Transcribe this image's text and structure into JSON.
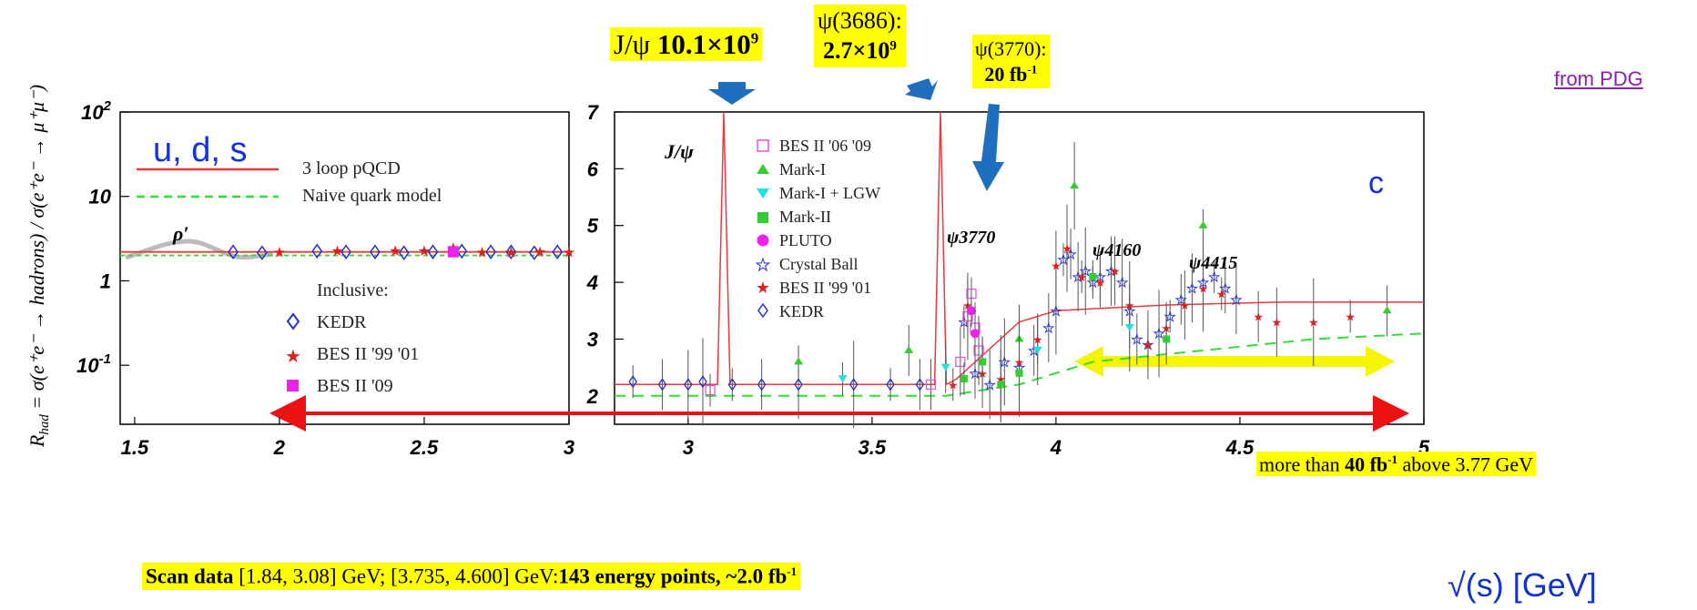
{
  "header": {
    "jpsi_name": "J/ψ",
    "jpsi_count": "10.1×10",
    "jpsi_exp": "9",
    "psi3686_name": "ψ(3686):",
    "psi3686_count": "2.7×10",
    "psi3686_exp": "9",
    "psi3770_name": "ψ(3770):",
    "psi3770_lumi": "20 fb",
    "psi3770_exp": "-1",
    "source_link": "from PDG"
  },
  "footer": {
    "scan_bold": "Scan data",
    "scan_ranges": " [1.84, 3.08] GeV; [3.735, 4.600] GeV:",
    "scan_points": "143 energy points, ~2.0 fb",
    "scan_exp": "-1",
    "xaxis_label": "√(s) [GeV]"
  },
  "band_note": {
    "prefix": "more than ",
    "lumi": "40 fb",
    "exp": "-1",
    "suffix": " above 3.77 GeV"
  },
  "colors": {
    "highlight": "#ffff00",
    "theory": "#e83a3a",
    "naive": "#33dd33",
    "arrow_blue": "#1f6fbf",
    "span_red": "#ee1111",
    "span_yellow": "#f5f500",
    "uds": "#1133dd",
    "link": "#8a1fb0"
  },
  "chart_data": [
    {
      "type": "scatter",
      "yscale": "log",
      "ylabel": "R_had = σ(e+e− → hadrons) / σ(e+e− → μ+μ−)",
      "xlim": [
        1.45,
        3.0
      ],
      "ylim": [
        0.02,
        100
      ],
      "x_ticks": [
        "1.5",
        "2",
        "2.5",
        "3"
      ],
      "y_ticks": [
        "10^2",
        "10",
        "1",
        "10^-1"
      ],
      "region_label": "u, d, s",
      "annotation": "ρ′",
      "legend": {
        "theory": [
          "3 loop pQCD",
          "Naive quark model"
        ],
        "inclusive_title": "Inclusive:",
        "markers": [
          "KEDR",
          "BES II '99 '01",
          "BES II '09"
        ]
      },
      "series": [
        {
          "name": "KEDR",
          "x": [
            1.84,
            1.94,
            2.13,
            2.23,
            2.33,
            2.43,
            2.53,
            2.63,
            2.73,
            2.8,
            2.88,
            2.96
          ],
          "y": [
            2.2,
            2.15,
            2.25,
            2.2,
            2.2,
            2.15,
            2.2,
            2.25,
            2.2,
            2.2,
            2.15,
            2.2
          ]
        },
        {
          "name": "BES II '99 '01",
          "x": [
            2.0,
            2.2,
            2.4,
            2.5,
            2.6,
            2.7,
            2.8,
            2.9,
            3.0
          ],
          "y": [
            2.2,
            2.3,
            2.3,
            2.3,
            2.5,
            2.2,
            2.2,
            2.25,
            2.2
          ]
        },
        {
          "name": "BES II '09",
          "x": [
            2.6
          ],
          "y": [
            2.2
          ]
        }
      ],
      "curves": [
        {
          "name": "3 loop pQCD",
          "y": 2.2
        },
        {
          "name": "Naive quark model",
          "y": 2.0
        }
      ]
    },
    {
      "type": "scatter",
      "xlim": [
        2.8,
        5.0
      ],
      "ylim": [
        1.5,
        7.0
      ],
      "x_ticks": [
        "3",
        "3.5",
        "4",
        "4.5",
        "5"
      ],
      "y_ticks": [
        "2",
        "3",
        "4",
        "5",
        "6",
        "7"
      ],
      "region_label": "c",
      "peak_labels": [
        "J/ψ",
        "ψ3770",
        "ψ4160",
        "ψ4415"
      ],
      "legend": [
        "BES II '06 '09",
        "Mark-I",
        "Mark-I + LGW",
        "Mark-II",
        "PLUTO",
        "Crystal Ball",
        "BES II '99 '01",
        "KEDR"
      ],
      "series": [
        {
          "name": "KEDR",
          "x": [
            2.85,
            2.93,
            3.0,
            3.04,
            3.12,
            3.2,
            3.3,
            3.45,
            3.55,
            3.63
          ],
          "y": [
            2.25,
            2.2,
            2.2,
            2.25,
            2.2,
            2.2,
            2.2,
            2.2,
            2.2,
            2.2
          ]
        },
        {
          "name": "Crystal Ball",
          "x": [
            3.75,
            3.78,
            3.82,
            3.86,
            3.9,
            3.94,
            3.98,
            4.0,
            4.02,
            4.04,
            4.06,
            4.08,
            4.1,
            4.12,
            4.15,
            4.18,
            4.2,
            4.22,
            4.25,
            4.28,
            4.31,
            4.34,
            4.37,
            4.4,
            4.43,
            4.46,
            4.49
          ],
          "y": [
            3.3,
            2.4,
            2.2,
            2.6,
            2.5,
            2.8,
            3.2,
            3.5,
            4.4,
            4.5,
            4.1,
            4.2,
            4.0,
            4.1,
            4.2,
            4.0,
            3.5,
            3.0,
            2.9,
            3.1,
            3.4,
            3.7,
            3.9,
            4.0,
            4.1,
            3.9,
            3.7
          ]
        },
        {
          "name": "BES II '99 '01",
          "x": [
            3.72,
            3.76,
            3.8,
            3.85,
            3.9,
            3.95,
            4.0,
            4.03,
            4.07,
            4.12,
            4.16,
            4.2,
            4.25,
            4.3,
            4.35,
            4.4,
            4.45,
            4.55,
            4.6,
            4.7,
            4.8
          ],
          "y": [
            2.2,
            3.6,
            2.4,
            2.3,
            2.6,
            3.0,
            4.3,
            4.6,
            4.1,
            4.0,
            4.2,
            3.6,
            2.9,
            3.2,
            3.6,
            3.9,
            3.8,
            3.4,
            3.3,
            3.3,
            3.4
          ]
        },
        {
          "name": "BES II '06 '09",
          "x": [
            3.06,
            3.66,
            3.74,
            3.76,
            3.77,
            3.78,
            3.79
          ],
          "y": [
            2.1,
            2.2,
            2.6,
            3.4,
            3.8,
            3.2,
            2.8
          ]
        },
        {
          "name": "Mark-I",
          "x": [
            3.3,
            3.6,
            3.9,
            4.05,
            4.4,
            4.9
          ],
          "y": [
            2.6,
            2.8,
            3.0,
            5.7,
            5.0,
            3.5
          ]
        },
        {
          "name": "Mark-I + LGW",
          "x": [
            3.42,
            3.7,
            3.95,
            4.2
          ],
          "y": [
            2.3,
            2.5,
            2.8,
            3.2
          ]
        },
        {
          "name": "Mark-II",
          "x": [
            3.75,
            3.8,
            3.85,
            3.9,
            4.1,
            4.3
          ],
          "y": [
            2.3,
            2.6,
            2.2,
            2.4,
            4.1,
            3.0
          ]
        },
        {
          "name": "PLUTO",
          "x": [
            3.77,
            3.78
          ],
          "y": [
            3.5,
            3.1
          ]
        }
      ],
      "curves": [
        {
          "name": "3 loop pQCD",
          "x": [
            2.8,
            3.08,
            3.097,
            3.114,
            3.67,
            3.686,
            3.702,
            3.73,
            3.9,
            4.0,
            4.3,
            4.6,
            5.0
          ],
          "y": [
            2.2,
            2.2,
            7.0,
            2.2,
            2.2,
            7.0,
            2.2,
            2.3,
            3.3,
            3.5,
            3.6,
            3.65,
            3.65
          ]
        },
        {
          "name": "Naive quark model",
          "x": [
            2.8,
            3.7,
            3.9,
            4.1,
            4.4,
            4.7,
            5.0
          ],
          "y": [
            2.0,
            2.0,
            2.2,
            2.6,
            2.8,
            3.0,
            3.1
          ]
        }
      ]
    }
  ]
}
